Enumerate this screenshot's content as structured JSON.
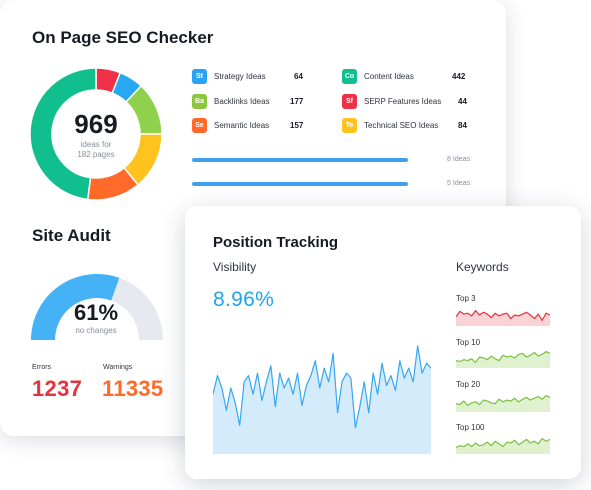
{
  "seo_checker": {
    "title": "On Page SEO Checker",
    "total": "969",
    "sub_line1": "ideas for",
    "sub_line2": "182 pages",
    "segments": [
      {
        "name": "red",
        "value": 0.06,
        "color": "#ef3147"
      },
      {
        "name": "light-blue",
        "value": 0.06,
        "color": "#27a8f3"
      },
      {
        "name": "green",
        "value": 0.13,
        "color": "#8fd14d"
      },
      {
        "name": "yellow",
        "value": 0.14,
        "color": "#ffc21e"
      },
      {
        "name": "orange",
        "value": 0.13,
        "color": "#ff6a2a"
      },
      {
        "name": "teal",
        "value": 0.48,
        "color": "#10bf8d"
      }
    ],
    "ideas": [
      {
        "abbr": "St",
        "label": "Strategy Ideas",
        "count": "64",
        "color": "#2aa4f2"
      },
      {
        "abbr": "Ba",
        "label": "Backlinks Ideas",
        "count": "177",
        "color": "#8cc63f"
      },
      {
        "abbr": "Se",
        "label": "Semantic Ideas",
        "count": "157",
        "color": "#ff6a2a"
      },
      {
        "abbr": "Co",
        "label": "Content Ideas",
        "count": "442",
        "color": "#10bf8d"
      },
      {
        "abbr": "Sf",
        "label": "SERP Features Ideas",
        "count": "44",
        "color": "#ef3147"
      },
      {
        "abbr": "Te",
        "label": "Technical SEO Ideas",
        "count": "84",
        "color": "#ffc21e"
      }
    ],
    "bars": [
      {
        "label": "8 Ideas"
      },
      {
        "label": "5 Ideas"
      }
    ]
  },
  "site_audit": {
    "title": "Site Audit",
    "percent": "61%",
    "percent_value": 0.61,
    "sub": "no changes",
    "errors_label": "Errors",
    "errors_value": "1237",
    "warnings_label": "Warnings",
    "warnings_value": "11335",
    "errors_color": "#e8323f",
    "warnings_color": "#ff6a2a"
  },
  "position_tracking": {
    "title": "Position Tracking",
    "visibility_label": "Visibility",
    "visibility_value": "8.96%",
    "visibility_series": [
      0.45,
      0.6,
      0.5,
      0.32,
      0.5,
      0.38,
      0.2,
      0.55,
      0.6,
      0.45,
      0.62,
      0.4,
      0.55,
      0.68,
      0.35,
      0.62,
      0.5,
      0.58,
      0.45,
      0.62,
      0.36,
      0.52,
      0.6,
      0.72,
      0.5,
      0.66,
      0.55,
      0.78,
      0.3,
      0.55,
      0.62,
      0.58,
      0.18,
      0.35,
      0.55,
      0.3,
      0.62,
      0.45,
      0.7,
      0.52,
      0.6,
      0.48,
      0.72,
      0.58,
      0.66,
      0.55,
      0.84,
      0.62,
      0.7,
      0.66
    ],
    "keywords_label": "Keywords",
    "keywords": [
      {
        "label": "Top 3",
        "color": "#e8323f",
        "fill": "#fbd2d6",
        "series": [
          0.4,
          0.7,
          0.55,
          0.6,
          0.45,
          0.75,
          0.5,
          0.65,
          0.55,
          0.35,
          0.6,
          0.45,
          0.55,
          0.6,
          0.3,
          0.5,
          0.45,
          0.55,
          0.65,
          0.5,
          0.3,
          0.55,
          0.2,
          0.6,
          0.5
        ]
      },
      {
        "label": "Top 10",
        "color": "#7bc043",
        "fill": "#dff1cf",
        "series": [
          0.3,
          0.25,
          0.35,
          0.3,
          0.4,
          0.2,
          0.5,
          0.45,
          0.35,
          0.55,
          0.4,
          0.3,
          0.6,
          0.5,
          0.55,
          0.45,
          0.65,
          0.7,
          0.5,
          0.6,
          0.75,
          0.55,
          0.65,
          0.8,
          0.7
        ]
      },
      {
        "label": "Top 20",
        "color": "#7bc043",
        "fill": "#dff1cf",
        "series": [
          0.35,
          0.3,
          0.5,
          0.25,
          0.4,
          0.45,
          0.3,
          0.55,
          0.5,
          0.4,
          0.35,
          0.6,
          0.45,
          0.55,
          0.5,
          0.65,
          0.45,
          0.6,
          0.7,
          0.55,
          0.65,
          0.75,
          0.6,
          0.8,
          0.7
        ]
      },
      {
        "label": "Top 100",
        "color": "#7bc043",
        "fill": "#dff1cf",
        "series": [
          0.25,
          0.35,
          0.3,
          0.45,
          0.3,
          0.5,
          0.35,
          0.4,
          0.55,
          0.35,
          0.6,
          0.45,
          0.3,
          0.55,
          0.5,
          0.65,
          0.4,
          0.55,
          0.7,
          0.5,
          0.6,
          0.45,
          0.75,
          0.6,
          0.7
        ]
      }
    ]
  }
}
